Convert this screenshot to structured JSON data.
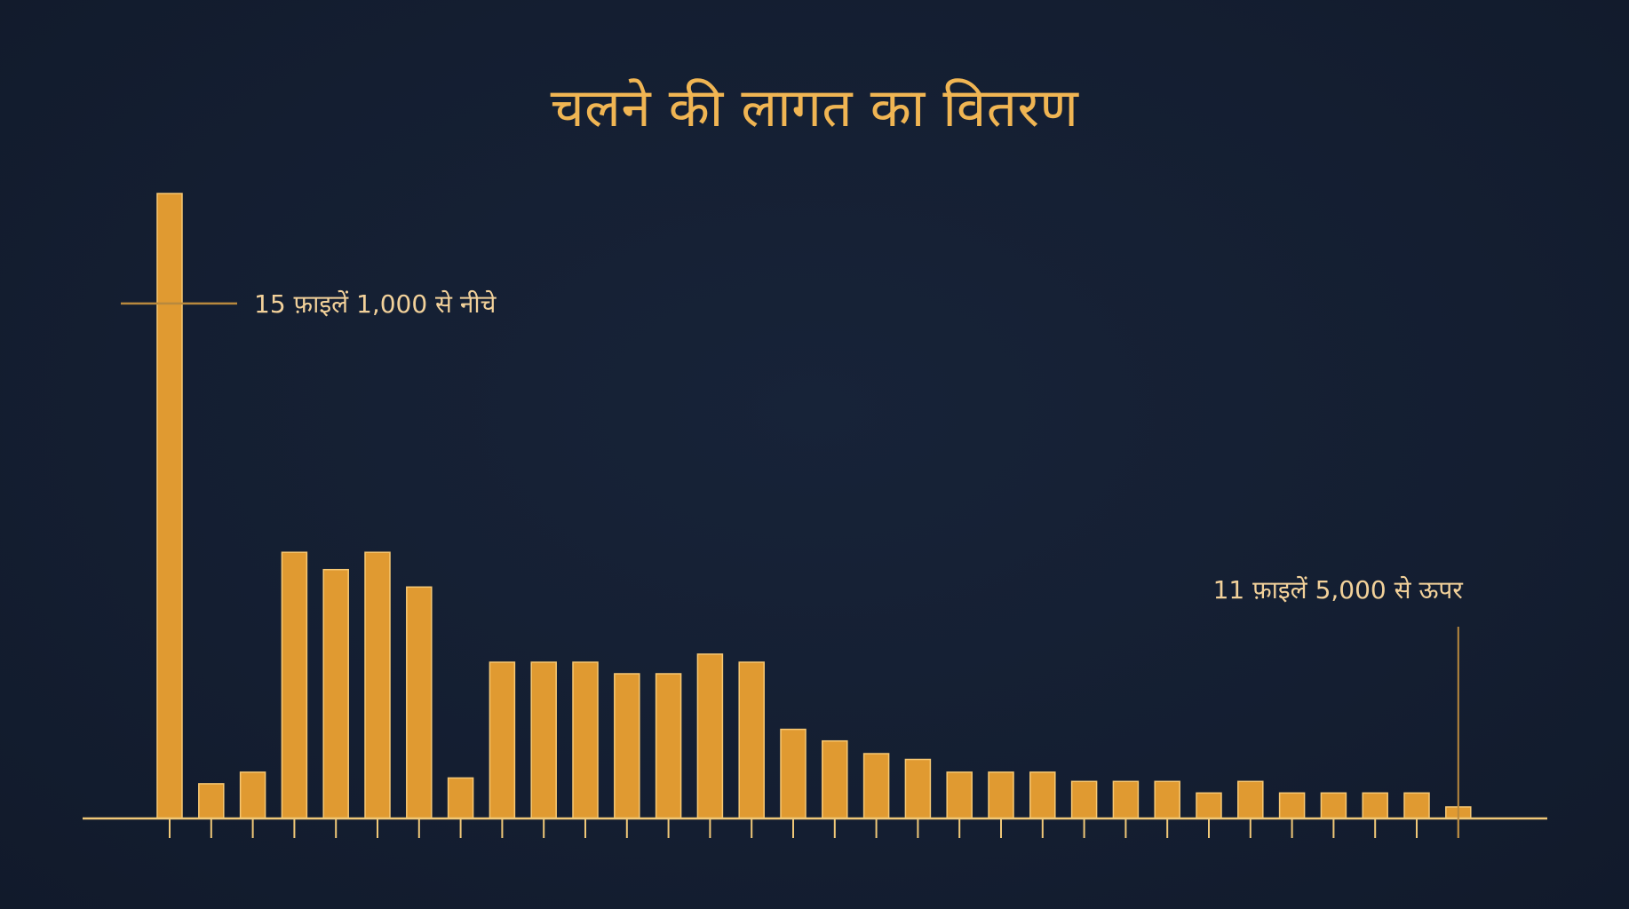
{
  "colors": {
    "background": "#141f33",
    "bar_fill": "#e09a31",
    "bar_edge": "#f7c873",
    "axis": "#f0c878",
    "annotation_line": "#b8893e",
    "title": "#f0b553",
    "annotation_text": "#f2d19a"
  },
  "chart_data": {
    "type": "bar",
    "title": "चलने की लागत का वितरण",
    "xlabel": "",
    "ylabel": "",
    "grid": false,
    "ylim": [
      0,
      55
    ],
    "values": [
      54,
      3,
      4,
      23,
      21.5,
      23,
      20,
      3.5,
      13.5,
      13.5,
      13.5,
      12.5,
      12.5,
      14.2,
      13.5,
      7.7,
      6.7,
      5.6,
      5.1,
      4,
      4,
      4,
      3.2,
      3.2,
      3.2,
      2.2,
      3.2,
      2.2,
      2.2,
      2.2,
      2.2,
      1
    ],
    "annotations": [
      {
        "text": "15 फ़ाइलें 1,000 से नीचे",
        "bar_index": 0,
        "y_value": 44.5,
        "style": "horizontal-marker"
      },
      {
        "text": "11 फ़ाइलें 5,000 से ऊपर",
        "bar_index": 31,
        "style": "vertical-marker"
      }
    ]
  }
}
